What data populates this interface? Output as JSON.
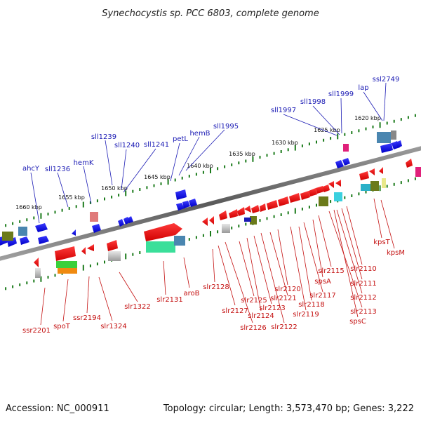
{
  "header": {
    "title": "Synechocystis sp. PCC 6803, complete genome"
  },
  "footer": {
    "accession": "Accession: NC_000911",
    "topology": "Topology: circular; Length: 3,573,470 bp; Genes: 3,222"
  },
  "colors": {
    "forward": "#1a1ab4",
    "reverse": "#c41010",
    "backbone": "#777777",
    "tick": "#1a7a1a"
  },
  "scale_ticks": [
    "1620 kbp",
    "1625 kbp",
    "1630 kbp",
    "1635 kbp",
    "1640 kbp",
    "1645 kbp",
    "1650 kbp",
    "1655 kbp",
    "1660 kbp"
  ],
  "genes_top": [
    "ssl2749",
    "lap",
    "sll1999",
    "sll1998",
    "sll1997",
    "sll1995",
    "hemB",
    "petL",
    "sll1241",
    "sll1240",
    "sll1239",
    "hemK",
    "sll1236",
    "ahcY"
  ],
  "genes_bottom": [
    "ssr2201",
    "spoT",
    "ssr2194",
    "slr1324",
    "slr1322",
    "slr2131",
    "aroB",
    "slr2128",
    "slr2127",
    "slr2126",
    "slr2125",
    "slr2124",
    "slr2123",
    "slr2122",
    "slr2121",
    "slr2120",
    "slr2119",
    "slr2118",
    "slr2117",
    "spsA",
    "slr2115",
    "slr2113",
    "spsC",
    "slr2112",
    "slr2111",
    "slr2110",
    "kpsT",
    "kpsM"
  ]
}
